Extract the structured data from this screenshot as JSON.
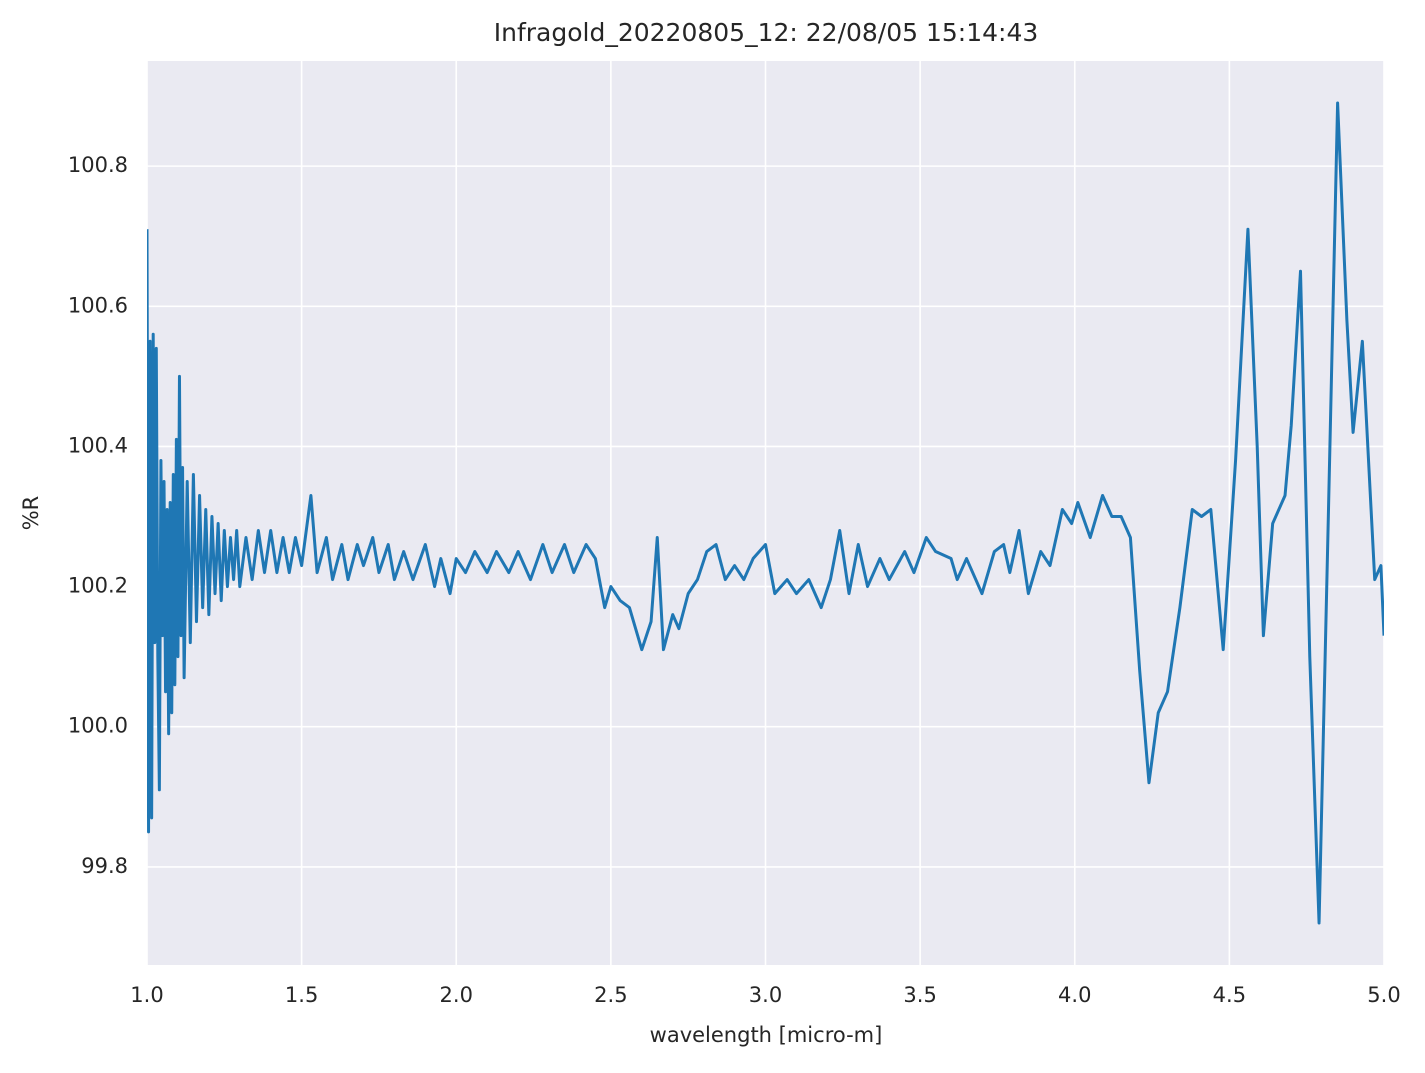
{
  "chart_data": {
    "type": "line",
    "title": "Infragold_20220805_12:  22/08/05 15:14:43",
    "xlabel": "wavelength [micro-m]",
    "ylabel": "%R",
    "xlim": [
      1.0,
      5.0
    ],
    "ylim": [
      99.66,
      100.95
    ],
    "xticks": [
      {
        "value": 1,
        "label": "1.0"
      },
      1.5,
      {
        "value": 2,
        "label": "2.0"
      },
      2.5,
      {
        "value": 3,
        "label": "3.0"
      },
      3.5,
      {
        "value": 4,
        "label": "4.0"
      },
      4.5,
      {
        "value": 5,
        "label": "5.0"
      }
    ],
    "yticks": [
      99.8,
      {
        "value": 100,
        "label": "100.0"
      },
      100.2,
      100.4,
      100.6,
      100.8
    ],
    "grid": true,
    "series": [
      {
        "color": "#1f77b4",
        "x": [
          1.0,
          1.005,
          1.01,
          1.015,
          1.02,
          1.025,
          1.03,
          1.035,
          1.04,
          1.045,
          1.05,
          1.055,
          1.06,
          1.065,
          1.07,
          1.075,
          1.08,
          1.085,
          1.09,
          1.095,
          1.1,
          1.105,
          1.11,
          1.115,
          1.12,
          1.13,
          1.14,
          1.15,
          1.16,
          1.17,
          1.18,
          1.19,
          1.2,
          1.21,
          1.22,
          1.23,
          1.24,
          1.25,
          1.26,
          1.27,
          1.28,
          1.29,
          1.3,
          1.32,
          1.34,
          1.36,
          1.38,
          1.4,
          1.42,
          1.44,
          1.46,
          1.48,
          1.5,
          1.53,
          1.55,
          1.58,
          1.6,
          1.63,
          1.65,
          1.68,
          1.7,
          1.73,
          1.75,
          1.78,
          1.8,
          1.83,
          1.86,
          1.9,
          1.93,
          1.95,
          1.98,
          2.0,
          2.03,
          2.06,
          2.1,
          2.13,
          2.17,
          2.2,
          2.24,
          2.28,
          2.31,
          2.35,
          2.38,
          2.42,
          2.45,
          2.48,
          2.5,
          2.53,
          2.56,
          2.6,
          2.63,
          2.65,
          2.67,
          2.7,
          2.72,
          2.75,
          2.78,
          2.81,
          2.84,
          2.87,
          2.9,
          2.93,
          2.96,
          3.0,
          3.03,
          3.07,
          3.1,
          3.14,
          3.18,
          3.21,
          3.24,
          3.27,
          3.3,
          3.33,
          3.37,
          3.4,
          3.45,
          3.48,
          3.52,
          3.55,
          3.6,
          3.62,
          3.65,
          3.7,
          3.74,
          3.77,
          3.79,
          3.82,
          3.85,
          3.89,
          3.92,
          3.96,
          3.99,
          4.01,
          4.05,
          4.09,
          4.12,
          4.15,
          4.18,
          4.21,
          4.24,
          4.27,
          4.3,
          4.34,
          4.38,
          4.41,
          4.44,
          4.48,
          4.52,
          4.56,
          4.59,
          4.61,
          4.64,
          4.68,
          4.7,
          4.73,
          4.76,
          4.79,
          4.82,
          4.85,
          4.88,
          4.9,
          4.93,
          4.97,
          4.99,
          5.0
        ],
        "values": [
          100.71,
          99.85,
          100.55,
          99.87,
          100.56,
          100.12,
          100.54,
          100.1,
          99.91,
          100.38,
          100.13,
          100.35,
          100.05,
          100.31,
          99.99,
          100.32,
          100.02,
          100.36,
          100.06,
          100.41,
          100.1,
          100.5,
          100.13,
          100.37,
          100.07,
          100.35,
          100.12,
          100.36,
          100.15,
          100.33,
          100.17,
          100.31,
          100.16,
          100.3,
          100.19,
          100.29,
          100.18,
          100.28,
          100.2,
          100.27,
          100.21,
          100.28,
          100.2,
          100.27,
          100.21,
          100.28,
          100.22,
          100.28,
          100.22,
          100.27,
          100.22,
          100.27,
          100.23,
          100.33,
          100.22,
          100.27,
          100.21,
          100.26,
          100.21,
          100.26,
          100.23,
          100.27,
          100.22,
          100.26,
          100.21,
          100.25,
          100.21,
          100.26,
          100.2,
          100.24,
          100.19,
          100.24,
          100.22,
          100.25,
          100.22,
          100.25,
          100.22,
          100.25,
          100.21,
          100.26,
          100.22,
          100.26,
          100.22,
          100.26,
          100.24,
          100.17,
          100.2,
          100.18,
          100.17,
          100.11,
          100.15,
          100.27,
          100.11,
          100.16,
          100.14,
          100.19,
          100.21,
          100.25,
          100.26,
          100.21,
          100.23,
          100.21,
          100.24,
          100.26,
          100.19,
          100.21,
          100.19,
          100.21,
          100.17,
          100.21,
          100.28,
          100.19,
          100.26,
          100.2,
          100.24,
          100.21,
          100.25,
          100.22,
          100.27,
          100.25,
          100.24,
          100.21,
          100.24,
          100.19,
          100.25,
          100.26,
          100.22,
          100.28,
          100.19,
          100.25,
          100.23,
          100.31,
          100.29,
          100.32,
          100.27,
          100.33,
          100.3,
          100.3,
          100.27,
          100.08,
          99.92,
          100.02,
          100.05,
          100.17,
          100.31,
          100.3,
          100.31,
          100.11,
          100.38,
          100.71,
          100.4,
          100.13,
          100.29,
          100.33,
          100.43,
          100.65,
          100.1,
          99.72,
          100.3,
          100.89,
          100.58,
          100.42,
          100.55,
          100.21,
          100.23,
          100.13
        ]
      }
    ]
  }
}
